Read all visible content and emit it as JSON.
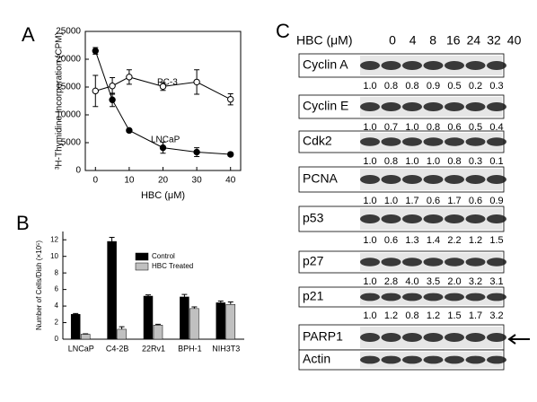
{
  "chart_data": [
    {
      "type": "line",
      "label": "A",
      "xlabel": "HBC (μM)",
      "ylabel": "³H-Thymidine Incorporation (CPM)",
      "x": [
        0,
        5,
        10,
        20,
        30,
        40
      ],
      "series": [
        {
          "name": "PC-3",
          "color": "#000000",
          "marker_fill": "#ffffff",
          "values": [
            14300,
            15200,
            16800,
            15100,
            15900,
            12800
          ],
          "errors": [
            2800,
            1500,
            1300,
            700,
            2200,
            1000
          ]
        },
        {
          "name": "LNCaP",
          "color": "#000000",
          "marker_fill": "#000000",
          "values": [
            21500,
            12700,
            7200,
            4100,
            3300,
            2900
          ],
          "errors": [
            600,
            1200,
            300,
            1000,
            800,
            300
          ]
        }
      ],
      "xlim": [
        -3,
        43
      ],
      "xticks": [
        0,
        10,
        20,
        30,
        40
      ],
      "ylim": [
        0,
        25000
      ],
      "yticks": [
        0,
        5000,
        10000,
        15000,
        20000,
        25000
      ],
      "grid": false
    },
    {
      "type": "bar",
      "label": "B",
      "ylabel": "Number of Cells/Dish (×10⁵)",
      "categories": [
        "LNCaP",
        "C4-2B",
        "22Rv1",
        "BPH-1",
        "NIH3T3"
      ],
      "series": [
        {
          "name": "Control",
          "color": "#000000",
          "values": [
            3.0,
            11.8,
            5.2,
            5.1,
            4.4
          ],
          "errors": [
            0.1,
            0.5,
            0.15,
            0.3,
            0.2
          ]
        },
        {
          "name": "HBC Treated",
          "color": "#c0c0c0",
          "values": [
            0.6,
            1.2,
            1.7,
            3.7,
            4.2
          ],
          "errors": [
            0.05,
            0.3,
            0.1,
            0.2,
            0.3
          ]
        }
      ],
      "ylim": [
        0,
        13
      ],
      "yticks": [
        0,
        2,
        4,
        6,
        8,
        10,
        12
      ],
      "grid": false,
      "legend": "upper center"
    }
  ],
  "blot": {
    "label": "C",
    "header": "HBC (μM)",
    "doses": [
      0,
      4,
      8,
      16,
      24,
      32,
      40
    ],
    "rows": [
      {
        "name": "Cyclin A",
        "values": [
          "1.0",
          "0.8",
          "0.8",
          "0.9",
          "0.5",
          "0.2",
          "0.3"
        ]
      },
      {
        "name": "Cyclin E",
        "values": [
          "1.0",
          "0.7",
          "1.0",
          "0.8",
          "0.6",
          "0.5",
          "0.4"
        ]
      },
      {
        "name": "Cdk2",
        "values": [
          "1.0",
          "0.8",
          "1.0",
          "1.0",
          "0.8",
          "0.3",
          "0.1"
        ]
      },
      {
        "name": "PCNA",
        "values": [
          "1.0",
          "1.0",
          "1.7",
          "0.6",
          "1.7",
          "0.6",
          "0.9"
        ]
      },
      {
        "name": "p53",
        "values": [
          "1.0",
          "0.6",
          "1.3",
          "1.4",
          "2.2",
          "1.2",
          "1.5"
        ]
      },
      {
        "name": "p27",
        "values": [
          "1.0",
          "2.8",
          "4.0",
          "3.5",
          "2.0",
          "3.2",
          "3.1"
        ]
      },
      {
        "name": "p21",
        "values": [
          "1.0",
          "1.2",
          "0.8",
          "1.2",
          "1.5",
          "1.7",
          "3.2"
        ]
      },
      {
        "name": "PARP1"
      },
      {
        "name": "Actin"
      }
    ]
  }
}
